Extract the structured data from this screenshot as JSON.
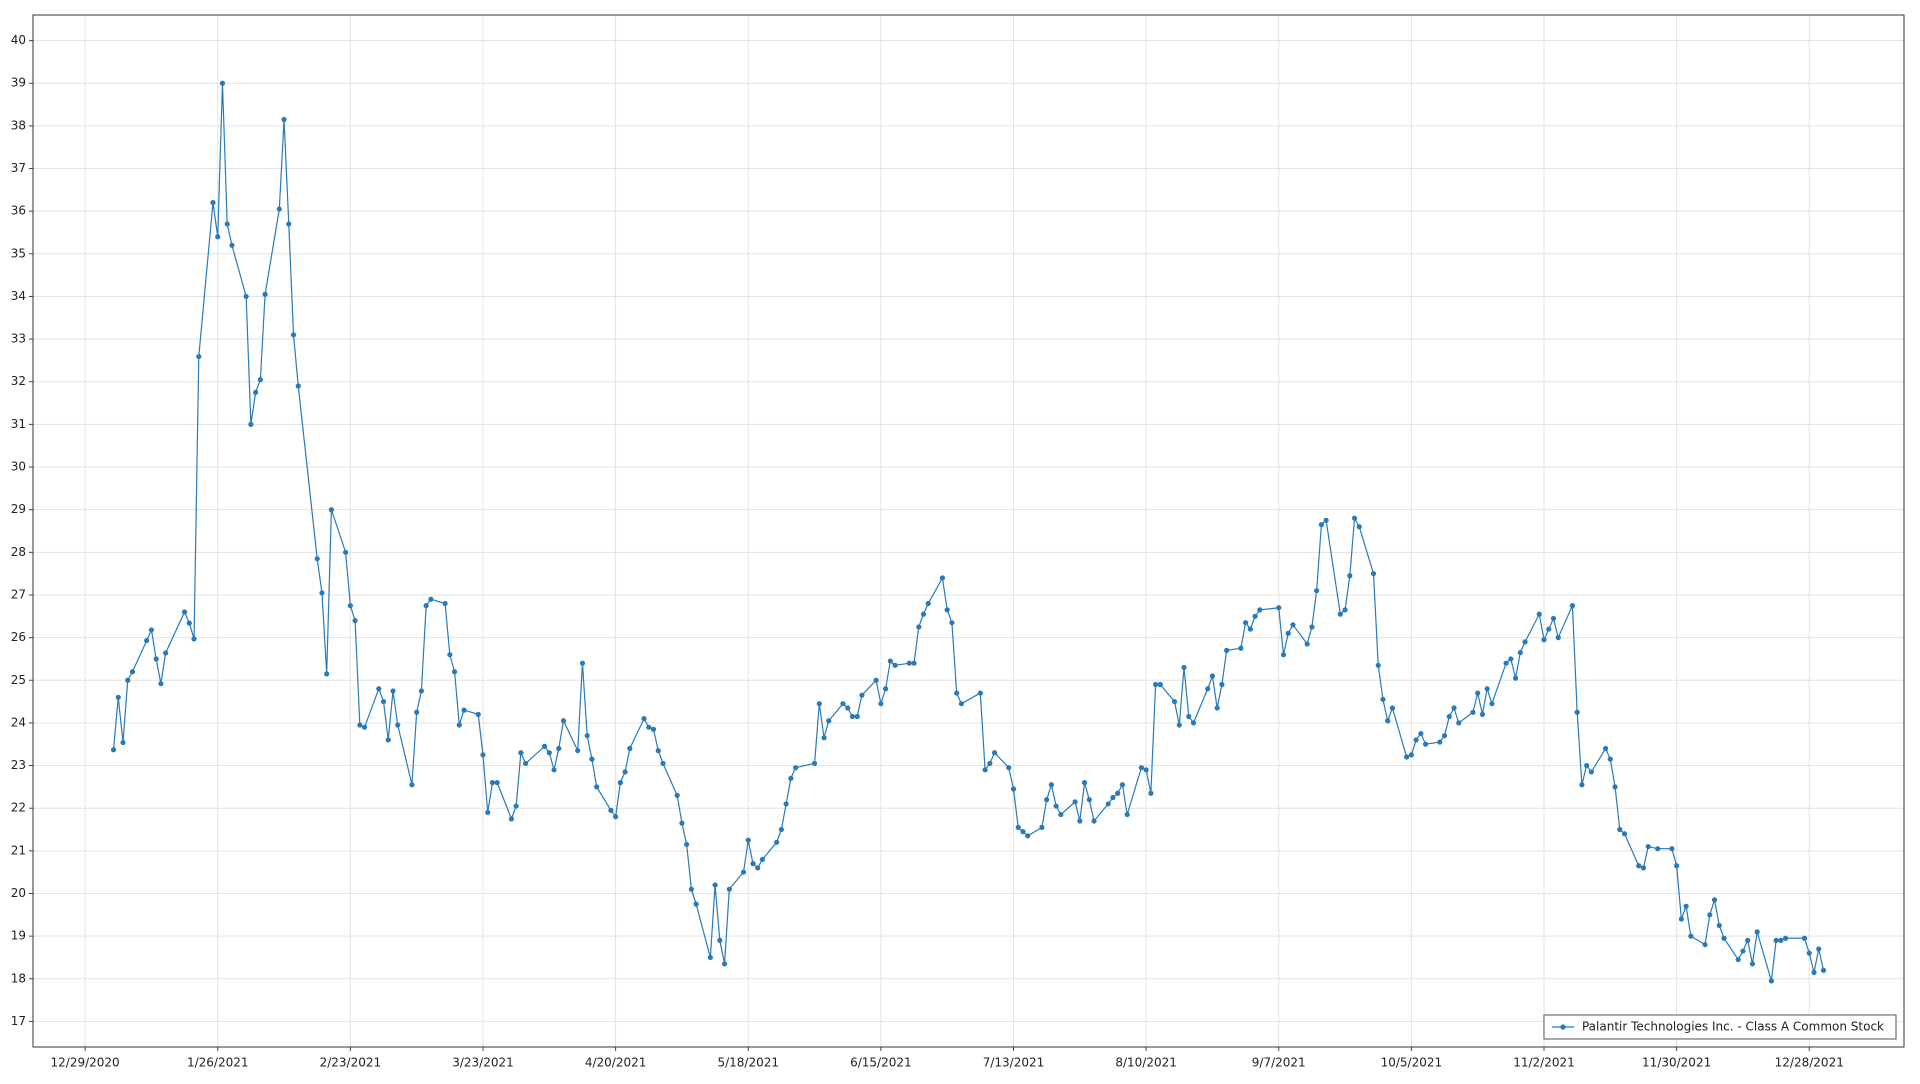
{
  "chart_data": {
    "type": "line",
    "series": [
      {
        "name": "Palantir Technologies Inc. - Class A Common Stock",
        "color": "#2a7ab8",
        "x": [
          "1/4/2021",
          "1/5/2021",
          "1/6/2021",
          "1/7/2021",
          "1/8/2021",
          "1/11/2021",
          "1/12/2021",
          "1/13/2021",
          "1/14/2021",
          "1/15/2021",
          "1/19/2021",
          "1/20/2021",
          "1/21/2021",
          "1/22/2021",
          "1/25/2021",
          "1/26/2021",
          "1/27/2021",
          "1/28/2021",
          "1/29/2021",
          "2/1/2021",
          "2/2/2021",
          "2/3/2021",
          "2/4/2021",
          "2/5/2021",
          "2/8/2021",
          "2/9/2021",
          "2/10/2021",
          "2/11/2021",
          "2/12/2021",
          "2/16/2021",
          "2/17/2021",
          "2/18/2021",
          "2/19/2021",
          "2/22/2021",
          "2/23/2021",
          "2/24/2021",
          "2/25/2021",
          "2/26/2021",
          "3/1/2021",
          "3/2/2021",
          "3/3/2021",
          "3/4/2021",
          "3/5/2021",
          "3/8/2021",
          "3/9/2021",
          "3/10/2021",
          "3/11/2021",
          "3/12/2021",
          "3/15/2021",
          "3/16/2021",
          "3/17/2021",
          "3/18/2021",
          "3/19/2021",
          "3/22/2021",
          "3/23/2021",
          "3/24/2021",
          "3/25/2021",
          "3/26/2021",
          "3/29/2021",
          "3/30/2021",
          "3/31/2021",
          "4/1/2021",
          "4/5/2021",
          "4/6/2021",
          "4/7/2021",
          "4/8/2021",
          "4/9/2021",
          "4/12/2021",
          "4/13/2021",
          "4/14/2021",
          "4/15/2021",
          "4/16/2021",
          "4/19/2021",
          "4/20/2021",
          "4/21/2021",
          "4/22/2021",
          "4/23/2021",
          "4/26/2021",
          "4/27/2021",
          "4/28/2021",
          "4/29/2021",
          "4/30/2021",
          "5/3/2021",
          "5/4/2021",
          "5/5/2021",
          "5/6/2021",
          "5/7/2021",
          "5/10/2021",
          "5/11/2021",
          "5/12/2021",
          "5/13/2021",
          "5/14/2021",
          "5/17/2021",
          "5/18/2021",
          "5/19/2021",
          "5/20/2021",
          "5/21/2021",
          "5/24/2021",
          "5/25/2021",
          "5/26/2021",
          "5/27/2021",
          "5/28/2021",
          "6/1/2021",
          "6/2/2021",
          "6/3/2021",
          "6/4/2021",
          "6/7/2021",
          "6/8/2021",
          "6/9/2021",
          "6/10/2021",
          "6/11/2021",
          "6/14/2021",
          "6/15/2021",
          "6/16/2021",
          "6/17/2021",
          "6/18/2021",
          "6/21/2021",
          "6/22/2021",
          "6/23/2021",
          "6/24/2021",
          "6/25/2021",
          "6/28/2021",
          "6/29/2021",
          "6/30/2021",
          "7/1/2021",
          "7/2/2021",
          "7/6/2021",
          "7/7/2021",
          "7/8/2021",
          "7/9/2021",
          "7/12/2021",
          "7/13/2021",
          "7/14/2021",
          "7/15/2021",
          "7/16/2021",
          "7/19/2021",
          "7/20/2021",
          "7/21/2021",
          "7/22/2021",
          "7/23/2021",
          "7/26/2021",
          "7/27/2021",
          "7/28/2021",
          "7/29/2021",
          "7/30/2021",
          "8/2/2021",
          "8/3/2021",
          "8/4/2021",
          "8/5/2021",
          "8/6/2021",
          "8/9/2021",
          "8/10/2021",
          "8/11/2021",
          "8/12/2021",
          "8/13/2021",
          "8/16/2021",
          "8/17/2021",
          "8/18/2021",
          "8/19/2021",
          "8/20/2021",
          "8/23/2021",
          "8/24/2021",
          "8/25/2021",
          "8/26/2021",
          "8/27/2021",
          "8/30/2021",
          "8/31/2021",
          "9/1/2021",
          "9/2/2021",
          "9/3/2021",
          "9/7/2021",
          "9/8/2021",
          "9/9/2021",
          "9/10/2021",
          "9/13/2021",
          "9/14/2021",
          "9/15/2021",
          "9/16/2021",
          "9/17/2021",
          "9/20/2021",
          "9/21/2021",
          "9/22/2021",
          "9/23/2021",
          "9/24/2021",
          "9/27/2021",
          "9/28/2021",
          "9/29/2021",
          "9/30/2021",
          "10/1/2021",
          "10/4/2021",
          "10/5/2021",
          "10/6/2021",
          "10/7/2021",
          "10/8/2021",
          "10/11/2021",
          "10/12/2021",
          "10/13/2021",
          "10/14/2021",
          "10/15/2021",
          "10/18/2021",
          "10/19/2021",
          "10/20/2021",
          "10/21/2021",
          "10/22/2021",
          "10/25/2021",
          "10/26/2021",
          "10/27/2021",
          "10/28/2021",
          "10/29/2021",
          "11/1/2021",
          "11/2/2021",
          "11/3/2021",
          "11/4/2021",
          "11/5/2021",
          "11/8/2021",
          "11/9/2021",
          "11/10/2021",
          "11/11/2021",
          "11/12/2021",
          "11/15/2021",
          "11/16/2021",
          "11/17/2021",
          "11/18/2021",
          "11/19/2021",
          "11/22/2021",
          "11/23/2021",
          "11/24/2021",
          "11/26/2021",
          "11/29/2021",
          "11/30/2021",
          "12/1/2021",
          "12/2/2021",
          "12/3/2021",
          "12/6/2021",
          "12/7/2021",
          "12/8/2021",
          "12/9/2021",
          "12/10/2021",
          "12/13/2021",
          "12/14/2021",
          "12/15/2021",
          "12/16/2021",
          "12/17/2021",
          "12/20/2021",
          "12/21/2021",
          "12/22/2021",
          "12/23/2021",
          "12/27/2021",
          "12/28/2021",
          "12/29/2021",
          "12/30/2021",
          "12/31/2021"
        ],
        "values": [
          23.37,
          24.6,
          23.54,
          25.0,
          25.2,
          25.93,
          26.18,
          25.5,
          24.92,
          25.64,
          26.6,
          26.34,
          25.97,
          32.59,
          36.2,
          35.4,
          39.0,
          35.7,
          35.2,
          34.0,
          31.0,
          31.75,
          32.05,
          34.05,
          36.05,
          38.15,
          35.7,
          33.1,
          31.9,
          27.85,
          27.05,
          25.15,
          29.0,
          28.0,
          26.75,
          26.4,
          23.95,
          23.9,
          24.8,
          24.5,
          23.6,
          24.75,
          23.95,
          22.55,
          24.25,
          24.75,
          26.75,
          26.9,
          26.8,
          25.6,
          25.2,
          23.95,
          24.3,
          24.2,
          23.25,
          21.9,
          22.6,
          22.6,
          21.75,
          22.05,
          23.3,
          23.05,
          23.45,
          23.3,
          22.9,
          23.4,
          24.05,
          23.35,
          25.4,
          23.7,
          23.15,
          22.5,
          21.95,
          21.8,
          22.6,
          22.85,
          23.4,
          24.1,
          23.9,
          23.85,
          23.35,
          23.05,
          22.3,
          21.65,
          21.15,
          20.1,
          19.75,
          18.5,
          20.2,
          18.9,
          18.35,
          20.1,
          20.5,
          21.25,
          20.7,
          20.6,
          20.8,
          21.2,
          21.5,
          22.1,
          22.7,
          22.95,
          23.05,
          24.45,
          23.65,
          24.05,
          24.45,
          24.35,
          24.15,
          24.15,
          24.65,
          25.0,
          24.45,
          24.8,
          25.45,
          25.35,
          25.4,
          25.4,
          26.25,
          26.55,
          26.8,
          27.4,
          26.65,
          26.35,
          24.7,
          24.45,
          24.7,
          22.9,
          23.05,
          23.3,
          22.95,
          22.45,
          21.55,
          21.45,
          21.35,
          21.55,
          22.2,
          22.55,
          22.05,
          21.85,
          22.15,
          21.7,
          22.6,
          22.2,
          21.7,
          22.1,
          22.25,
          22.35,
          22.55,
          21.85,
          22.95,
          22.9,
          22.35,
          24.9,
          24.9,
          24.5,
          23.95,
          25.3,
          24.15,
          24.0,
          24.8,
          25.1,
          24.35,
          24.9,
          25.7,
          25.75,
          26.35,
          26.2,
          26.5,
          26.65,
          26.7,
          25.6,
          26.1,
          26.3,
          25.85,
          26.25,
          27.1,
          28.65,
          28.75,
          26.55,
          26.65,
          27.45,
          28.8,
          28.6,
          27.5,
          25.35,
          24.55,
          24.05,
          24.35,
          23.2,
          23.25,
          23.6,
          23.75,
          23.5,
          23.55,
          23.7,
          24.15,
          24.35,
          24.0,
          24.25,
          24.7,
          24.2,
          24.8,
          24.45,
          25.4,
          25.5,
          25.05,
          25.65,
          25.9,
          26.55,
          25.95,
          26.2,
          26.45,
          26.0,
          26.75,
          24.25,
          22.55,
          23.0,
          22.85,
          23.4,
          23.15,
          22.5,
          21.5,
          21.4,
          20.65,
          20.6,
          21.1,
          21.05,
          21.05,
          20.65,
          19.4,
          19.7,
          19.0,
          18.8,
          19.5,
          19.85,
          19.25,
          18.95,
          18.45,
          18.65,
          18.9,
          18.35,
          19.1,
          17.95,
          18.9,
          18.9,
          18.95,
          18.95,
          18.6,
          18.15,
          18.7,
          18.2
        ]
      }
    ],
    "xlim": [
      "12/18/2020",
      "1/17/2022"
    ],
    "xticks": [
      "12/29/2020",
      "1/26/2021",
      "2/23/2021",
      "3/23/2021",
      "4/20/2021",
      "5/18/2021",
      "6/15/2021",
      "7/13/2021",
      "8/10/2021",
      "9/7/2021",
      "10/5/2021",
      "11/2/2021",
      "11/30/2021",
      "12/28/2021"
    ],
    "ylim": [
      16.4,
      40.6
    ],
    "yticks": [
      17,
      18,
      19,
      20,
      21,
      22,
      23,
      24,
      25,
      26,
      27,
      28,
      29,
      30,
      31,
      32,
      33,
      34,
      35,
      36,
      37,
      38,
      39,
      40
    ],
    "grid": true,
    "legend": "lower right"
  }
}
